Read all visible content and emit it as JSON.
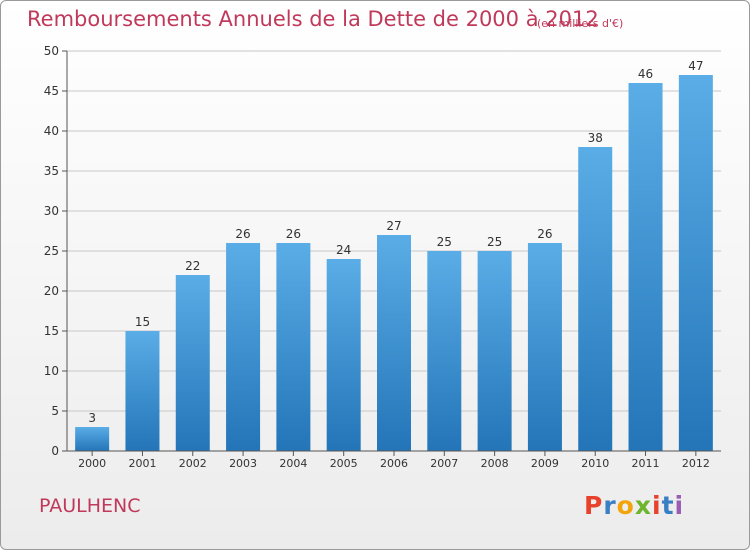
{
  "title": "Remboursements Annuels de la Dette de 2000 à 2012",
  "subtitle": "(en milliers d'€)",
  "commune": "PAULHENC",
  "logo": {
    "letters": [
      "P",
      "r",
      "o",
      "x",
      "i",
      "t",
      "i"
    ],
    "colors": [
      "#e8412c",
      "#3a7fc4",
      "#f2a40c",
      "#6cb52d",
      "#e8412c",
      "#3a7fc4",
      "#9a5cb4"
    ]
  },
  "colors": {
    "title": "#c0395b",
    "bar_top": "#5aade6",
    "bar_bottom": "#2375b8",
    "grid": "#c8c8c8"
  },
  "chart_data": {
    "type": "bar",
    "categories": [
      "2000",
      "2001",
      "2002",
      "2003",
      "2004",
      "2005",
      "2006",
      "2007",
      "2008",
      "2009",
      "2010",
      "2011",
      "2012"
    ],
    "values": [
      3,
      15,
      22,
      26,
      26,
      24,
      27,
      25,
      25,
      26,
      38,
      46,
      47
    ],
    "ylim": [
      0,
      50
    ],
    "yticks": [
      0,
      5,
      10,
      15,
      20,
      25,
      30,
      35,
      40,
      45,
      50
    ],
    "grid": true,
    "data_labels": true
  }
}
